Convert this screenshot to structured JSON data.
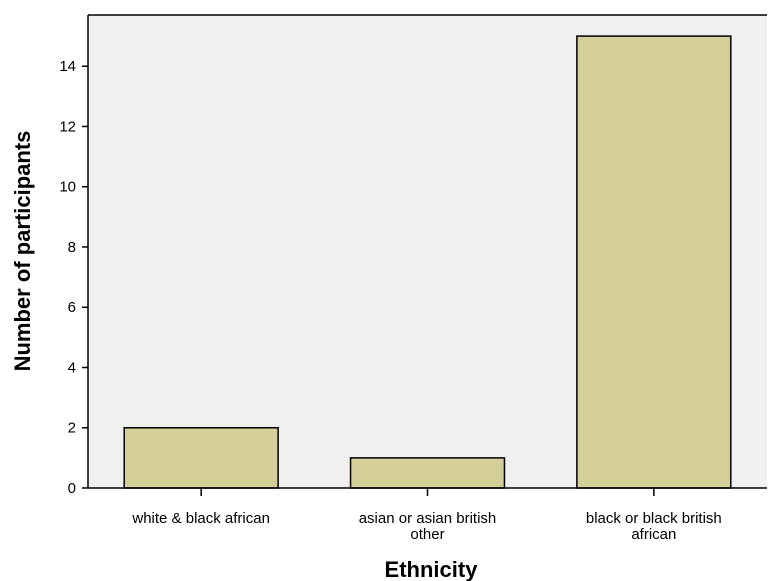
{
  "chart_data": {
    "type": "bar",
    "title": "",
    "xlabel": "Ethnicity",
    "ylabel": "Number of participants",
    "categories": [
      [
        "white & black african"
      ],
      [
        "asian or asian british",
        "other"
      ],
      [
        "black or black british",
        "african"
      ]
    ],
    "values": [
      2,
      1,
      15
    ],
    "ylim": [
      0,
      15.7
    ],
    "yticks": [
      0,
      2,
      4,
      6,
      8,
      10,
      12,
      14
    ],
    "grid": false,
    "colors": {
      "bar_fill": "#d4ce99",
      "bar_stroke": "#000000",
      "plot_background": "#f0f0f0",
      "page_background": "#ffffff"
    }
  }
}
